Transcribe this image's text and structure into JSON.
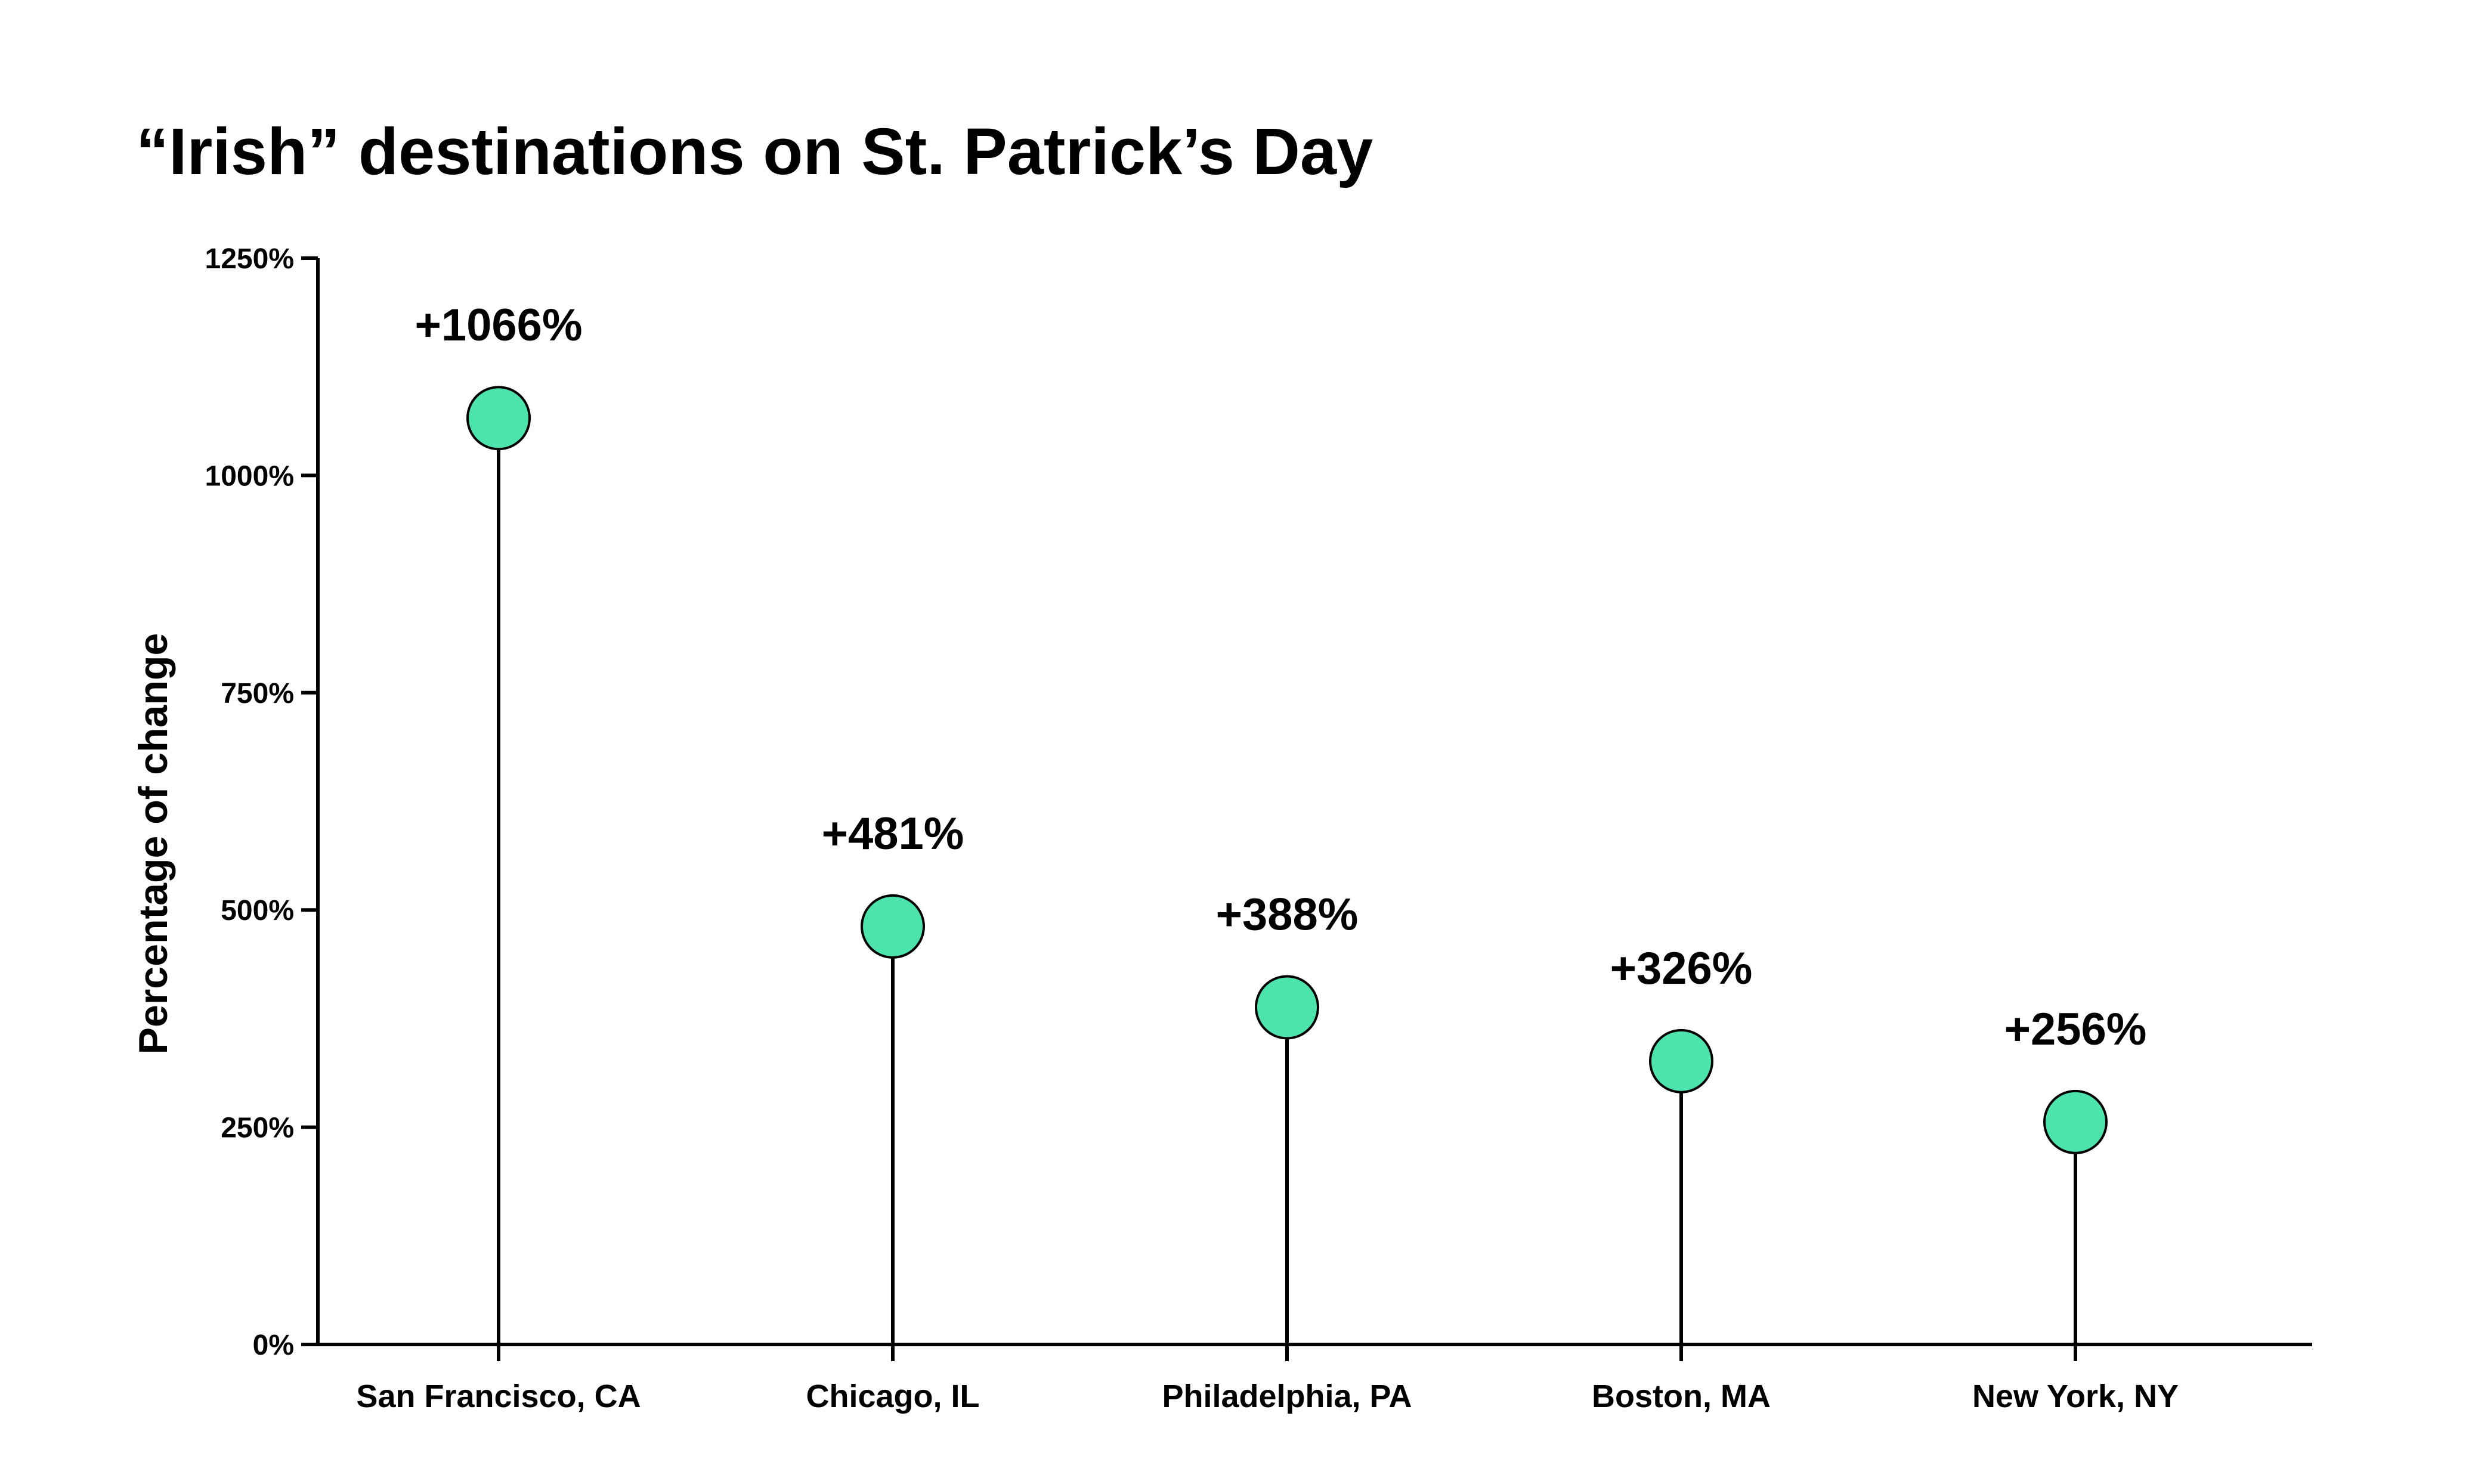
{
  "chart_data": {
    "type": "lollipop",
    "title": "“Irish” destinations on St. Patrick’s Day",
    "ylabel": "Percentage of change",
    "xlabel": "",
    "categories": [
      "San Francisco, CA",
      "Chicago, IL",
      "Philadelphia, PA",
      "Boston, MA",
      "New York, NY"
    ],
    "values": [
      1066,
      481,
      388,
      326,
      256
    ],
    "value_labels": [
      "+1066%",
      "+481%",
      "+388%",
      "+326%",
      "+256%"
    ],
    "ylim": [
      0,
      1250
    ],
    "yticks": [
      0,
      250,
      500,
      750,
      1000,
      1250
    ],
    "ytick_labels": [
      "0%",
      "250%",
      "500%",
      "750%",
      "1000%",
      "1250%"
    ],
    "grid": false,
    "legend": "none",
    "colors": {
      "marker_fill": "#4de3ad",
      "marker_stroke": "#000000",
      "stem": "#000000",
      "axis": "#000000"
    }
  }
}
